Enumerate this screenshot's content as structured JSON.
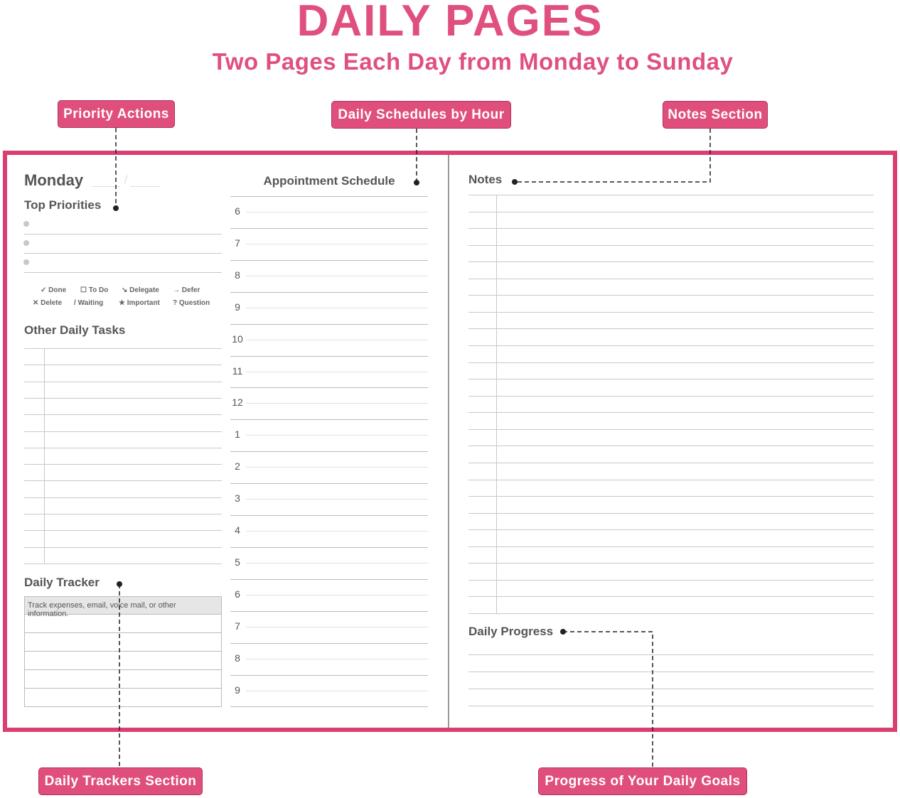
{
  "header": {
    "title": "DAILY PAGES",
    "subtitle": "Two Pages Each Day from Monday to Sunday"
  },
  "callouts": {
    "priority": "Priority Actions",
    "schedule": "Daily Schedules by Hour",
    "notes": "Notes Section",
    "trackers": "Daily Trackers Section",
    "progress": "Progress of Your Daily Goals"
  },
  "left": {
    "day": "Monday",
    "date_separator": "/",
    "top_priorities": "Top Priorities",
    "legend": [
      {
        "symbol": "✓",
        "label": "Done"
      },
      {
        "symbol": "☐",
        "label": "To Do"
      },
      {
        "symbol": "↘",
        "label": "Delegate"
      },
      {
        "symbol": "→",
        "label": "Defer"
      },
      {
        "symbol": "✕",
        "label": "Delete"
      },
      {
        "symbol": "/",
        "label": "Waiting"
      },
      {
        "symbol": "★",
        "label": "Important"
      },
      {
        "symbol": "?",
        "label": "Question"
      }
    ],
    "other_tasks": "Other Daily Tasks",
    "daily_tracker": "Daily Tracker",
    "tracker_hint": "Track expenses, email, voice mail, or other information."
  },
  "schedule": {
    "title": "Appointment Schedule",
    "hours": [
      "6",
      "7",
      "8",
      "9",
      "10",
      "11",
      "12",
      "1",
      "2",
      "3",
      "4",
      "5",
      "6",
      "7",
      "8",
      "9"
    ]
  },
  "right": {
    "notes": "Notes",
    "daily_progress": "Daily Progress"
  },
  "colors": {
    "accent": "#e0507e",
    "frame": "#d9406f"
  }
}
